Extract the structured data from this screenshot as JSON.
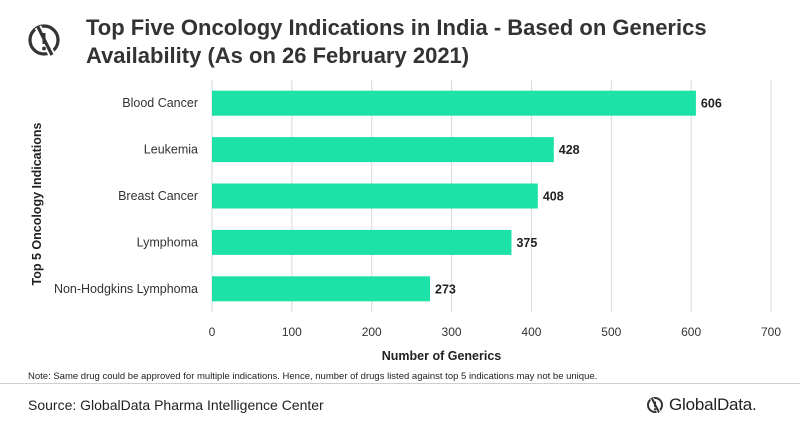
{
  "header": {
    "title": "Top Five Oncology Indications in India - Based on Generics Availability (As on 26 February 2021)"
  },
  "chart_data": {
    "type": "bar",
    "orientation": "horizontal",
    "title": "Top Five Oncology Indications in India - Based on Generics Availability (As on 26 February 2021)",
    "categories": [
      "Blood Cancer",
      "Leukemia",
      "Breast Cancer",
      "Lymphoma",
      "Non-Hodgkins Lymphoma"
    ],
    "values": [
      606,
      428,
      408,
      375,
      273
    ],
    "xlabel": "Number of Generics",
    "ylabel": "Top 5 Oncology Indications",
    "xlim": [
      0,
      700
    ],
    "xticks": [
      "0",
      "100",
      "200",
      "300",
      "400",
      "500",
      "600",
      "700"
    ],
    "grid": true,
    "legend": "none",
    "bar_color": "#1de2a7"
  },
  "footer": {
    "note": "Note: Same drug could be approved for multiple indications. Hence, number of drugs listed against top 5 indications may not be unique.",
    "source": "Source: GlobalData Pharma Intelligence Center",
    "brand": "GlobalData."
  },
  "colors": {
    "accent": "#1de2a7",
    "grid": "#d9d9d9",
    "text": "#333333"
  }
}
